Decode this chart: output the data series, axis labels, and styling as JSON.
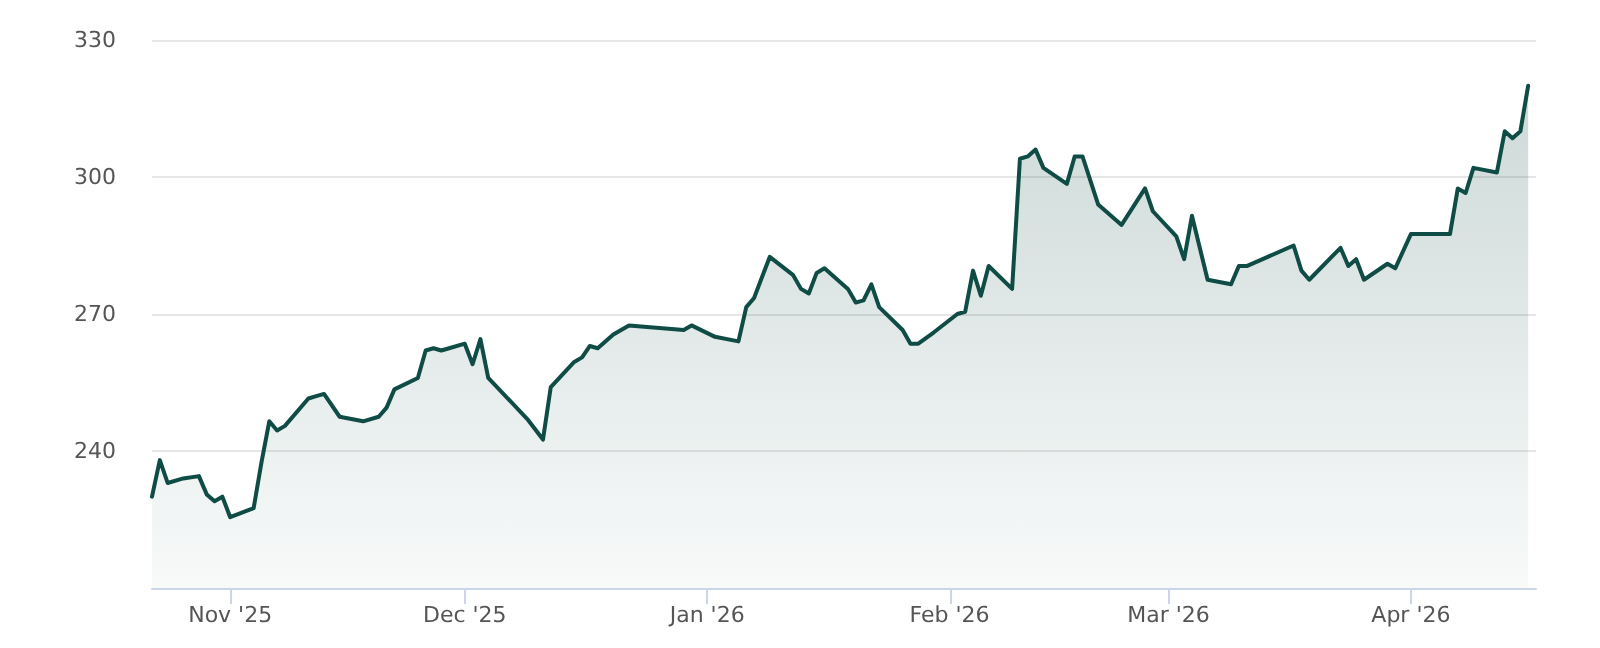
{
  "chart_data": {
    "type": "area",
    "x": [
      "2025-10-22",
      "2025-10-23",
      "2025-10-24",
      "2025-10-26",
      "2025-10-28",
      "2025-10-29",
      "2025-10-30",
      "2025-10-31",
      "2025-11-01",
      "2025-11-04",
      "2025-11-05",
      "2025-11-06",
      "2025-11-07",
      "2025-11-08",
      "2025-11-11",
      "2025-11-12",
      "2025-11-13",
      "2025-11-15",
      "2025-11-18",
      "2025-11-20",
      "2025-11-21",
      "2025-11-22",
      "2025-11-25",
      "2025-11-26",
      "2025-11-27",
      "2025-11-28",
      "2025-11-29",
      "2025-12-01",
      "2025-12-02",
      "2025-12-03",
      "2025-12-04",
      "2025-12-09",
      "2025-12-11",
      "2025-12-12",
      "2025-12-15",
      "2025-12-16",
      "2025-12-17",
      "2025-12-18",
      "2025-12-20",
      "2025-12-22",
      "2025-12-29",
      "2025-12-30",
      "2026-01-02",
      "2026-01-05",
      "2026-01-06",
      "2026-01-07",
      "2026-01-09",
      "2026-01-12",
      "2026-01-13",
      "2026-01-14",
      "2026-01-15",
      "2026-01-16",
      "2026-01-19",
      "2026-01-20",
      "2026-01-21",
      "2026-01-22",
      "2026-01-23",
      "2026-01-26",
      "2026-01-27",
      "2026-01-28",
      "2026-01-30",
      "2026-02-02",
      "2026-02-03",
      "2026-02-04",
      "2026-02-05",
      "2026-02-06",
      "2026-02-09",
      "2026-02-10",
      "2026-02-11",
      "2026-02-12",
      "2026-02-13",
      "2026-02-16",
      "2026-02-17",
      "2026-02-18",
      "2026-02-20",
      "2026-02-23",
      "2026-02-26",
      "2026-02-27",
      "2026-03-02",
      "2026-03-03",
      "2026-03-04",
      "2026-03-06",
      "2026-03-09",
      "2026-03-10",
      "2026-03-11",
      "2026-03-17",
      "2026-03-18",
      "2026-03-19",
      "2026-03-23",
      "2026-03-24",
      "2026-03-25",
      "2026-03-26",
      "2026-03-29",
      "2026-03-30",
      "2026-04-01",
      "2026-04-06",
      "2026-04-07",
      "2026-04-08",
      "2026-04-09",
      "2026-04-12",
      "2026-04-13",
      "2026-04-14",
      "2026-04-15",
      "2026-04-16"
    ],
    "series": [
      {
        "color": "#0f4c45",
        "values": [
          230,
          238,
          233,
          234,
          234.5,
          230.5,
          229,
          230,
          225.5,
          227.5,
          237.5,
          246.5,
          244.5,
          245.5,
          251.5,
          252,
          252.5,
          247.5,
          246.5,
          247.5,
          249.5,
          253.5,
          256,
          262,
          262.5,
          262,
          262.5,
          263.5,
          259,
          264.5,
          256,
          247,
          242.5,
          254,
          259.5,
          260.5,
          263,
          262.5,
          265.5,
          267.5,
          266.5,
          267.5,
          265,
          264,
          271.5,
          273.5,
          282.5,
          278.5,
          275.5,
          274.5,
          279,
          280,
          275.5,
          272.5,
          273,
          276.5,
          271.5,
          266.5,
          263.5,
          263.5,
          266,
          270,
          270.5,
          279.5,
          274,
          280.5,
          275.5,
          304,
          304.5,
          306,
          302,
          298.5,
          304.5,
          304.5,
          294,
          289.5,
          297.5,
          292.5,
          287,
          282,
          291.5,
          277.5,
          276.5,
          280.5,
          280.5,
          285,
          279.5,
          277.5,
          284.5,
          280.5,
          282,
          277.5,
          281,
          280,
          287.5,
          287.5,
          297.5,
          296.5,
          302,
          301,
          310,
          308.5,
          310,
          320
        ]
      }
    ],
    "xlim": [
      "2025-10-22",
      "2026-04-17"
    ],
    "xticks": [
      {
        "value": "2025-11-01",
        "label": "Nov '25"
      },
      {
        "value": "2025-12-01",
        "label": "Dec '25"
      },
      {
        "value": "2026-01-01",
        "label": "Jan '26"
      },
      {
        "value": "2026-02-01",
        "label": "Feb '26"
      },
      {
        "value": "2026-03-01",
        "label": "Mar '26"
      },
      {
        "value": "2026-04-01",
        "label": "Apr '26"
      }
    ],
    "ylim": [
      210,
      330
    ],
    "yticks": [
      240,
      270,
      300,
      330
    ],
    "grid": "y",
    "marker": "none",
    "line_style": "solid"
  }
}
